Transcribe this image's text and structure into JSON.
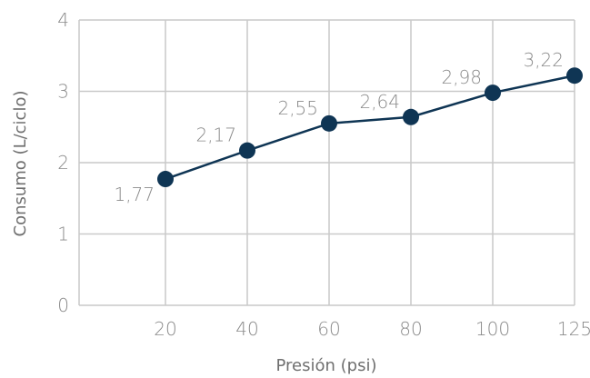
{
  "chart_data": {
    "type": "line",
    "title": "",
    "xlabel": "Presión (psi)",
    "ylabel": "Consumo (L/ciclo)",
    "categories": [
      "20",
      "40",
      "60",
      "80",
      "100",
      "125"
    ],
    "series": [
      {
        "values": [
          1.77,
          2.17,
          2.55,
          2.64,
          2.98,
          3.22
        ]
      }
    ],
    "data_labels": [
      "1,77",
      "2,17",
      "2,55",
      "2,64",
      "2,98",
      "3,22"
    ],
    "ylim": [
      0,
      4
    ],
    "yticks": [
      "0",
      "1",
      "2",
      "3",
      "4"
    ],
    "grid": true,
    "line_color": "#0f3554",
    "marker_color": "#0f3554",
    "grid_color": "#c9c9c9"
  }
}
